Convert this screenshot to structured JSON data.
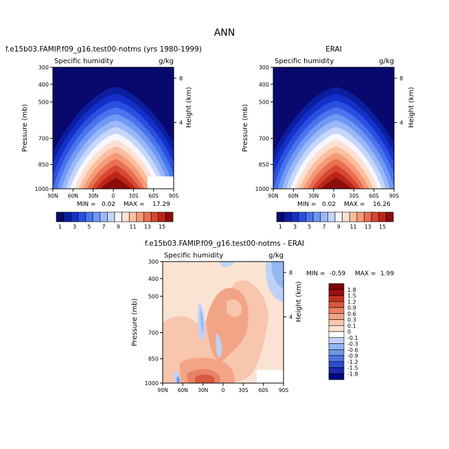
{
  "figure_title": "ANN",
  "colors": {
    "seq": [
      "#08086e",
      "#0a1ea0",
      "#1530c8",
      "#2a50e0",
      "#4a74ee",
      "#7098f4",
      "#9ab8f8",
      "#c4d6fb",
      "#f6f6ff",
      "#fde0d2",
      "#fbbf9f",
      "#f59a76",
      "#e87050",
      "#d74630",
      "#bb2618",
      "#8c0c0c"
    ],
    "diff": [
      "#06087a",
      "#1a2aa8",
      "#2c4ccc",
      "#4c76e0",
      "#6c96ea",
      "#94b6f2",
      "#bed2f8",
      "#ffffff",
      "#fbe3d4",
      "#f8c5ad",
      "#f2a586",
      "#e88264",
      "#d85a40",
      "#c03020",
      "#9a1010",
      "#7a0606"
    ]
  },
  "chart_data": [
    {
      "type": "contour",
      "name": "model",
      "title": "f.e15b03.FAMIP.f09_g16.test00-notms (yrs 1980-1999)",
      "variable": "Specific humidity",
      "units": "g/kg",
      "ylabel": "Pressure (mb)",
      "ylabel_right": "Height (km)",
      "x_ticks": [
        "90N",
        "60N",
        "30N",
        "0",
        "30S",
        "60S",
        "90S"
      ],
      "y_ticks": [
        "300",
        "400",
        "500",
        "700",
        "850",
        "1000"
      ],
      "y_ticks_right": [
        "8",
        "4"
      ],
      "min": "0.02",
      "max": "17.29",
      "min_label": "MIN =",
      "max_label": "MAX =",
      "colorbar_ticks": [
        "1",
        "3",
        "5",
        "7",
        "9",
        "11",
        "13",
        "15"
      ],
      "peak_value": 17.29
    },
    {
      "type": "contour",
      "name": "obs",
      "title": "ERAI",
      "variable": "Specific humidity",
      "units": "g/kg",
      "ylabel": "Pressure (mb)",
      "ylabel_right": "Height (km)",
      "x_ticks": [
        "90N",
        "60N",
        "30N",
        "0",
        "30S",
        "60S",
        "90S"
      ],
      "y_ticks": [
        "300",
        "400",
        "500",
        "700",
        "850",
        "1000"
      ],
      "y_ticks_right": [
        "8",
        "4"
      ],
      "min": "0.02",
      "max": "16.26",
      "min_label": "MIN =",
      "max_label": "MAX =",
      "peak_value": 16.26
    },
    {
      "type": "contour",
      "name": "difference",
      "title": "f.e15b03.FAMIP.f09_g16.test00-notms - ERAI",
      "variable": "Specific humidity",
      "units": "g/kg",
      "ylabel": "Pressure (mb)",
      "ylabel_right": "Height (km)",
      "x_ticks": [
        "90N",
        "60N",
        "30N",
        "0",
        "30S",
        "60S",
        "90S"
      ],
      "y_ticks": [
        "300",
        "400",
        "500",
        "700",
        "850",
        "1000"
      ],
      "y_ticks_right": [
        "8",
        "4"
      ],
      "min": "-0.59",
      "max": "1.99",
      "min_label": "MIN =",
      "max_label": "MAX =",
      "colorbar_ticks": [
        "1.8",
        "1.5",
        "1.2",
        "0.9",
        "0.6",
        "0.3",
        "0.1",
        "0",
        "-0.1",
        "-0.3",
        "-0.6",
        "-0.9",
        "-1.2",
        "-1.5",
        "-1.8"
      ]
    }
  ]
}
